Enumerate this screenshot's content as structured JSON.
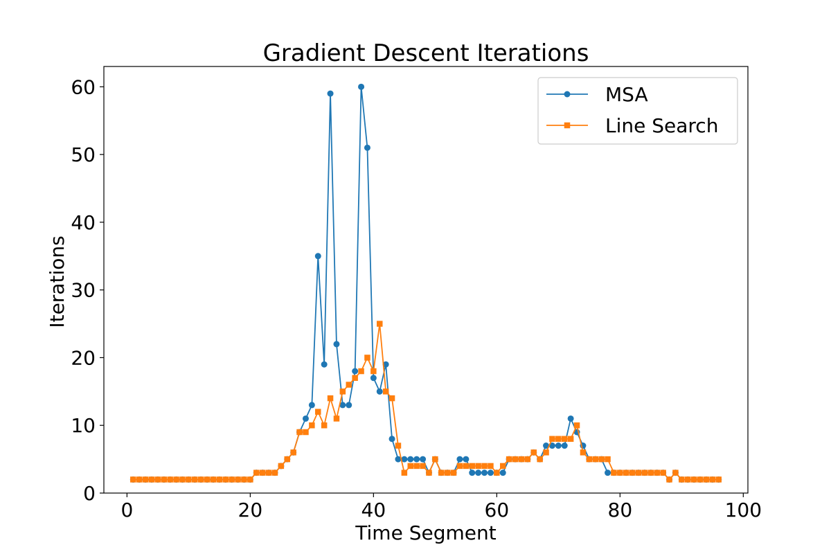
{
  "chart_data": {
    "type": "line",
    "title": "Gradient Descent Iterations",
    "xlabel": "Time Segment",
    "ylabel": "Iterations",
    "xlim": [
      -3.75,
      100.75
    ],
    "ylim": [
      0,
      63
    ],
    "xticks": [
      0,
      20,
      40,
      60,
      80,
      100
    ],
    "yticks": [
      0,
      10,
      20,
      30,
      40,
      50,
      60
    ],
    "grid": false,
    "legend_position": "top-right",
    "x": [
      1,
      2,
      3,
      4,
      5,
      6,
      7,
      8,
      9,
      10,
      11,
      12,
      13,
      14,
      15,
      16,
      17,
      18,
      19,
      20,
      21,
      22,
      23,
      24,
      25,
      26,
      27,
      28,
      29,
      30,
      31,
      32,
      33,
      34,
      35,
      36,
      37,
      38,
      39,
      40,
      41,
      42,
      43,
      44,
      45,
      46,
      47,
      48,
      49,
      50,
      51,
      52,
      53,
      54,
      55,
      56,
      57,
      58,
      59,
      60,
      61,
      62,
      63,
      64,
      65,
      66,
      67,
      68,
      69,
      70,
      71,
      72,
      73,
      74,
      75,
      76,
      77,
      78,
      79,
      80,
      81,
      82,
      83,
      84,
      85,
      86,
      87,
      88,
      89,
      90,
      91,
      92,
      93,
      94,
      95,
      96
    ],
    "series": [
      {
        "name": "MSA",
        "color": "#1f77b4",
        "marker": "circle",
        "values": [
          2,
          2,
          2,
          2,
          2,
          2,
          2,
          2,
          2,
          2,
          2,
          2,
          2,
          2,
          2,
          2,
          2,
          2,
          2,
          2,
          3,
          3,
          3,
          3,
          4,
          5,
          6,
          9,
          11,
          13,
          35,
          19,
          59,
          22,
          13,
          13,
          18,
          60,
          51,
          17,
          15,
          19,
          8,
          5,
          5,
          5,
          5,
          5,
          3,
          5,
          3,
          3,
          3,
          5,
          5,
          3,
          3,
          3,
          3,
          3,
          3,
          5,
          5,
          5,
          5,
          6,
          5,
          7,
          7,
          7,
          7,
          11,
          9,
          7,
          5,
          5,
          5,
          3,
          3,
          3,
          3,
          3,
          3,
          3,
          3,
          3,
          3,
          2,
          3,
          2,
          2,
          2,
          2,
          2,
          2,
          2
        ]
      },
      {
        "name": "Line Search",
        "color": "#ff7f0e",
        "marker": "square",
        "values": [
          2,
          2,
          2,
          2,
          2,
          2,
          2,
          2,
          2,
          2,
          2,
          2,
          2,
          2,
          2,
          2,
          2,
          2,
          2,
          2,
          3,
          3,
          3,
          3,
          4,
          5,
          6,
          9,
          9,
          10,
          12,
          10,
          14,
          11,
          15,
          16,
          17,
          18,
          20,
          18,
          25,
          15,
          14,
          7,
          3,
          4,
          4,
          4,
          3,
          5,
          3,
          3,
          3,
          4,
          4,
          4,
          4,
          4,
          4,
          3,
          4,
          5,
          5,
          5,
          5,
          6,
          5,
          6,
          8,
          8,
          8,
          8,
          10,
          6,
          5,
          5,
          5,
          5,
          3,
          3,
          3,
          3,
          3,
          3,
          3,
          3,
          3,
          2,
          3,
          2,
          2,
          2,
          2,
          2,
          2,
          2
        ]
      }
    ]
  }
}
